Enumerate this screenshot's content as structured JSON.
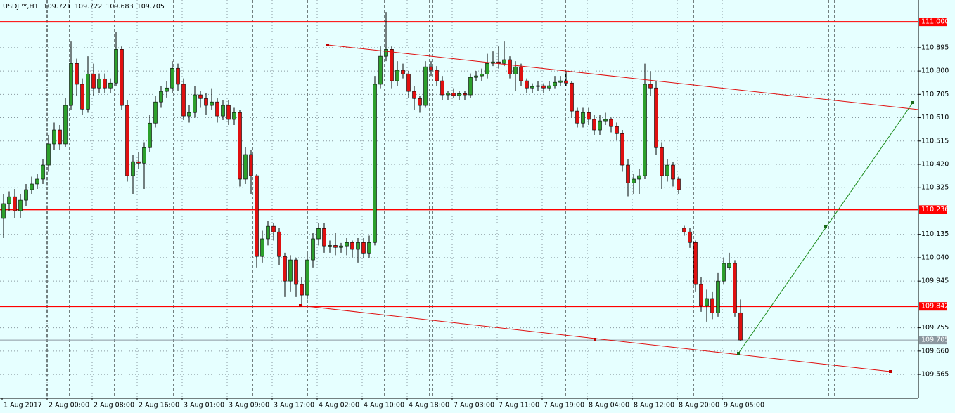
{
  "chart_data": {
    "type": "candlestick",
    "symbol": "USDJPY,H1",
    "quote": [
      109.721,
      109.722,
      109.683,
      109.705
    ],
    "ylim": [
      109.468,
      111.089
    ],
    "yticks": [
      110.895,
      {
        "value": 110.8,
        "label": "110.800"
      },
      110.705,
      {
        "value": 110.61,
        "label": "110.610"
      },
      110.515,
      {
        "value": 110.42,
        "label": "110.420"
      },
      110.325,
      110.135,
      {
        "value": 110.04,
        "label": "110.040"
      },
      109.945,
      109.755,
      {
        "value": 109.66,
        "label": "109.660"
      },
      109.565
    ],
    "grid": true,
    "bull_color": "#2ca02c",
    "bear_color": "#e01010",
    "wick_color": "#000000",
    "levels": [
      {
        "value": 111.0,
        "label": "111.000",
        "color": "#ff0000"
      },
      {
        "value": 110.236,
        "label": "110.236",
        "color": "#ff0000"
      },
      {
        "value": 109.842,
        "label": "109.842",
        "color": "#ff0000"
      },
      {
        "value": 109.705,
        "label": "109.705",
        "color": "#8c98a0"
      }
    ],
    "time_labels": [
      "1 Aug 2017",
      "2 Aug 00:00",
      "2 Aug 08:00",
      "2 Aug 16:00",
      "3 Aug 01:00",
      "3 Aug 09:00",
      "3 Aug 17:00",
      "4 Aug 02:00",
      "4 Aug 10:00",
      "4 Aug 18:00",
      "7 Aug 03:00",
      "7 Aug 11:00",
      "7 Aug 19:00",
      "8 Aug 04:00",
      "8 Aug 12:00",
      "8 Aug 20:00",
      "9 Aug 05:00"
    ],
    "ohlc": [
      [
        110.2,
        110.3,
        110.12,
        110.26
      ],
      [
        110.26,
        110.31,
        110.23,
        110.288
      ],
      [
        110.288,
        110.32,
        110.2,
        110.231
      ],
      [
        110.231,
        110.3,
        110.2,
        110.274
      ],
      [
        110.274,
        110.34,
        110.25,
        110.317
      ],
      [
        110.317,
        110.37,
        110.3,
        110.34
      ],
      [
        110.34,
        110.38,
        110.32,
        110.36
      ],
      [
        110.36,
        110.44,
        110.34,
        110.417
      ],
      [
        110.417,
        110.54,
        110.39,
        110.503
      ],
      [
        110.503,
        110.59,
        110.48,
        110.56
      ],
      [
        110.56,
        110.58,
        110.48,
        110.503
      ],
      [
        110.503,
        110.69,
        110.49,
        110.66
      ],
      [
        110.66,
        110.92,
        110.64,
        110.831
      ],
      [
        110.831,
        110.85,
        110.7,
        110.746
      ],
      [
        110.746,
        110.77,
        110.62,
        110.645
      ],
      [
        110.645,
        110.86,
        110.63,
        110.788
      ],
      [
        110.788,
        110.83,
        110.7,
        110.731
      ],
      [
        110.731,
        110.79,
        110.71,
        110.768
      ],
      [
        110.768,
        110.79,
        110.71,
        110.731
      ],
      [
        110.731,
        110.77,
        110.71,
        110.751
      ],
      [
        110.751,
        110.96,
        110.74,
        110.888
      ],
      [
        110.888,
        110.9,
        110.64,
        110.66
      ],
      [
        110.66,
        110.68,
        110.35,
        110.374
      ],
      [
        110.374,
        110.46,
        110.3,
        110.431
      ],
      [
        110.431,
        110.47,
        110.4,
        110.425
      ],
      [
        110.425,
        110.51,
        110.32,
        110.488
      ],
      [
        110.488,
        110.62,
        110.47,
        110.588
      ],
      [
        110.588,
        110.7,
        110.57,
        110.674
      ],
      [
        110.674,
        110.74,
        110.65,
        110.717
      ],
      [
        110.717,
        110.76,
        110.69,
        110.731
      ],
      [
        110.731,
        110.84,
        110.71,
        110.811
      ],
      [
        110.811,
        110.83,
        110.72,
        110.746
      ],
      [
        110.746,
        110.77,
        110.6,
        110.617
      ],
      [
        110.617,
        110.66,
        110.59,
        110.631
      ],
      [
        110.631,
        110.74,
        110.61,
        110.703
      ],
      [
        110.703,
        110.72,
        110.65,
        110.688
      ],
      [
        110.688,
        110.71,
        110.62,
        110.66
      ],
      [
        110.66,
        110.73,
        110.64,
        110.674
      ],
      [
        110.674,
        110.69,
        110.59,
        110.617
      ],
      [
        110.617,
        110.68,
        110.6,
        110.66
      ],
      [
        110.66,
        110.68,
        110.58,
        110.603
      ],
      [
        110.603,
        110.65,
        110.58,
        110.631
      ],
      [
        110.631,
        110.64,
        110.33,
        110.36
      ],
      [
        110.36,
        110.49,
        110.34,
        110.46
      ],
      [
        110.46,
        110.48,
        110.3,
        110.374
      ],
      [
        110.374,
        110.38,
        110.0,
        110.045
      ],
      [
        110.045,
        110.15,
        110.02,
        110.117
      ],
      [
        110.117,
        110.19,
        110.09,
        110.168
      ],
      [
        110.168,
        110.18,
        110.11,
        110.145
      ],
      [
        110.145,
        110.16,
        110.01,
        110.045
      ],
      [
        110.045,
        110.06,
        109.88,
        109.945
      ],
      [
        109.945,
        110.05,
        109.9,
        110.031
      ],
      [
        110.031,
        110.04,
        109.88,
        109.931
      ],
      [
        109.931,
        109.96,
        109.85,
        109.888
      ],
      [
        109.888,
        110.06,
        109.87,
        110.031
      ],
      [
        110.031,
        110.14,
        110.0,
        110.117
      ],
      [
        110.117,
        110.18,
        110.09,
        110.159
      ],
      [
        110.159,
        110.18,
        110.06,
        110.088
      ],
      [
        110.088,
        110.11,
        110.06,
        110.09
      ],
      [
        110.09,
        110.14,
        110.05,
        110.082
      ],
      [
        110.082,
        110.1,
        110.06,
        110.088
      ],
      [
        110.088,
        110.12,
        110.05,
        110.102
      ],
      [
        110.102,
        110.11,
        110.04,
        110.074
      ],
      [
        110.074,
        110.12,
        110.02,
        110.102
      ],
      [
        110.102,
        110.12,
        110.04,
        110.059
      ],
      [
        110.059,
        110.13,
        110.04,
        110.102
      ],
      [
        110.102,
        110.78,
        110.09,
        110.746
      ],
      [
        110.746,
        110.9,
        110.73,
        110.86
      ],
      [
        110.86,
        111.04,
        110.84,
        110.888
      ],
      [
        110.888,
        110.9,
        110.73,
        110.76
      ],
      [
        110.76,
        110.84,
        110.74,
        110.803
      ],
      [
        110.803,
        110.83,
        110.77,
        110.788
      ],
      [
        110.788,
        110.8,
        110.69,
        110.717
      ],
      [
        110.717,
        110.74,
        110.64,
        110.688
      ],
      [
        110.688,
        110.7,
        110.63,
        110.66
      ],
      [
        110.66,
        110.84,
        110.65,
        110.817
      ],
      [
        110.817,
        110.84,
        110.78,
        110.803
      ],
      [
        110.803,
        110.82,
        110.74,
        110.76
      ],
      [
        110.76,
        110.78,
        110.68,
        110.703
      ],
      [
        110.703,
        110.72,
        110.68,
        110.71
      ],
      [
        110.71,
        110.73,
        110.69,
        110.7
      ],
      [
        110.7,
        110.72,
        110.68,
        110.708
      ],
      [
        110.708,
        110.72,
        110.68,
        110.703
      ],
      [
        110.703,
        110.79,
        110.69,
        110.774
      ],
      [
        110.774,
        110.8,
        110.76,
        110.78
      ],
      [
        110.78,
        110.81,
        110.76,
        110.788
      ],
      [
        110.788,
        110.87,
        110.77,
        110.831
      ],
      [
        110.831,
        110.88,
        110.82,
        110.837
      ],
      [
        110.837,
        110.9,
        110.81,
        110.831
      ],
      [
        110.831,
        110.92,
        110.82,
        110.846
      ],
      [
        110.846,
        110.86,
        110.77,
        110.788
      ],
      [
        110.788,
        110.84,
        110.72,
        110.817
      ],
      [
        110.817,
        110.83,
        110.74,
        110.76
      ],
      [
        110.76,
        110.77,
        110.71,
        110.731
      ],
      [
        110.731,
        110.75,
        110.71,
        110.737
      ],
      [
        110.737,
        110.76,
        110.72,
        110.74
      ],
      [
        110.74,
        110.75,
        110.71,
        110.731
      ],
      [
        110.731,
        110.76,
        110.72,
        110.74
      ],
      [
        110.74,
        110.78,
        110.73,
        110.754
      ],
      [
        110.754,
        110.78,
        110.74,
        110.76
      ],
      [
        110.76,
        110.8,
        110.74,
        110.751
      ],
      [
        110.751,
        110.76,
        110.61,
        110.637
      ],
      [
        110.637,
        110.65,
        110.57,
        110.588
      ],
      [
        110.588,
        110.65,
        110.57,
        110.631
      ],
      [
        110.631,
        110.65,
        110.58,
        110.603
      ],
      [
        110.603,
        110.62,
        110.54,
        110.56
      ],
      [
        110.56,
        110.62,
        110.54,
        110.597
      ],
      [
        110.597,
        110.63,
        110.58,
        110.603
      ],
      [
        110.603,
        110.61,
        110.55,
        110.574
      ],
      [
        110.574,
        110.59,
        110.52,
        110.545
      ],
      [
        110.545,
        110.56,
        110.39,
        110.417
      ],
      [
        110.417,
        110.44,
        110.29,
        110.345
      ],
      [
        110.345,
        110.38,
        110.3,
        110.36
      ],
      [
        110.36,
        110.4,
        110.3,
        110.374
      ],
      [
        110.374,
        110.83,
        110.36,
        110.746
      ],
      [
        110.746,
        110.8,
        110.7,
        110.731
      ],
      [
        110.731,
        110.76,
        110.46,
        110.488
      ],
      [
        110.488,
        110.51,
        110.32,
        110.374
      ],
      [
        110.374,
        110.44,
        110.35,
        110.417
      ],
      [
        110.417,
        110.43,
        110.33,
        110.36
      ],
      [
        110.36,
        110.37,
        110.3,
        110.317
      ],
      [
        110.16,
        110.17,
        110.13,
        110.145
      ],
      [
        110.145,
        110.16,
        110.08,
        110.102
      ],
      [
        110.102,
        110.11,
        109.9,
        109.931
      ],
      [
        109.931,
        109.96,
        109.82,
        109.845
      ],
      [
        109.845,
        109.91,
        109.78,
        109.874
      ],
      [
        109.874,
        109.9,
        109.79,
        109.816
      ],
      [
        109.816,
        109.98,
        109.8,
        109.945
      ],
      [
        109.945,
        110.04,
        109.93,
        110.017
      ],
      [
        110.0,
        110.06,
        109.99,
        110.017
      ],
      [
        110.017,
        110.03,
        109.8,
        109.816
      ],
      [
        109.816,
        109.87,
        109.7,
        109.705
      ]
    ]
  }
}
